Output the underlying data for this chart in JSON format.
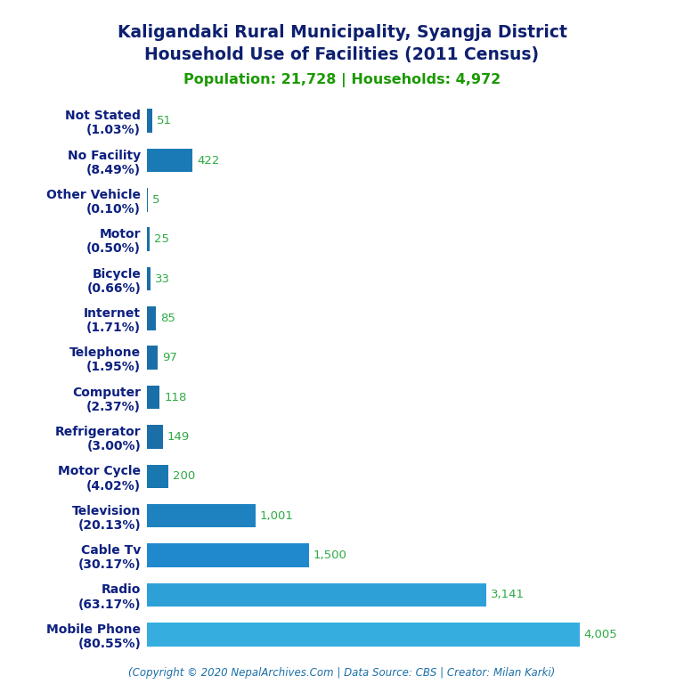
{
  "title_line1": "Kaligandaki Rural Municipality, Syangja District",
  "title_line2": "Household Use of Facilities (2011 Census)",
  "subtitle": "Population: 21,728 | Households: 4,972",
  "copyright": "(Copyright © 2020 NepalArchives.Com | Data Source: CBS | Creator: Milan Karki)",
  "categories": [
    "Not Stated\n(1.03%)",
    "No Facility\n(8.49%)",
    "Other Vehicle\n(0.10%)",
    "Motor\n(0.50%)",
    "Bicycle\n(0.66%)",
    "Internet\n(1.71%)",
    "Telephone\n(1.95%)",
    "Computer\n(2.37%)",
    "Refrigerator\n(3.00%)",
    "Motor Cycle\n(4.02%)",
    "Television\n(20.13%)",
    "Cable Tv\n(30.17%)",
    "Radio\n(63.17%)",
    "Mobile Phone\n(80.55%)"
  ],
  "values": [
    51,
    422,
    5,
    25,
    33,
    85,
    97,
    118,
    149,
    200,
    1001,
    1500,
    3141,
    4005
  ],
  "bar_colors": [
    "#1a6fa8",
    "#1a7ab5",
    "#1a6fa8",
    "#1a6fa8",
    "#1a6fa8",
    "#1a6fa8",
    "#1a6fa8",
    "#1a6fa8",
    "#1a6fa8",
    "#1a78b0",
    "#1e82c0",
    "#2088cc",
    "#2da0d8",
    "#35aedf"
  ],
  "title_color": "#0d1f6e",
  "subtitle_color": "#1a9900",
  "value_label_color": "#2eaa44",
  "category_label_color": "#0d2080",
  "copyright_color": "#1a6fa8",
  "background_color": "#ffffff",
  "xlim": [
    0,
    4400
  ],
  "title_fontsize": 13.5,
  "subtitle_fontsize": 11.5,
  "label_fontsize": 10,
  "value_fontsize": 9.5,
  "copyright_fontsize": 8.5
}
